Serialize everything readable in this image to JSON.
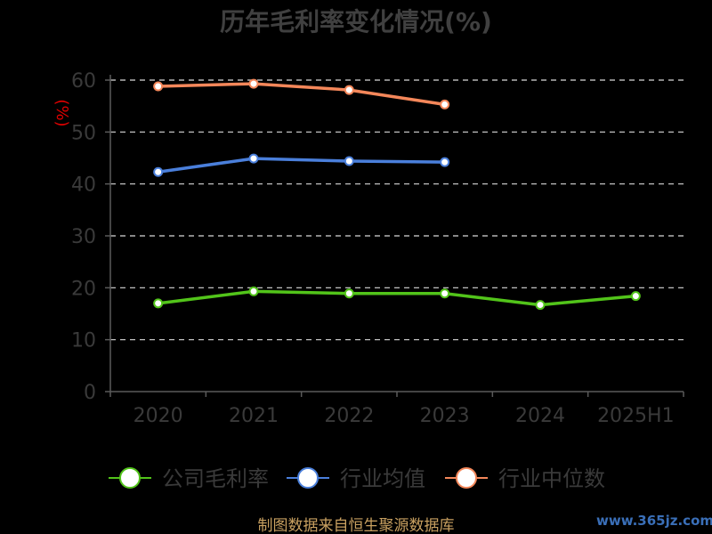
{
  "chart_data": {
    "type": "line",
    "title": "历年毛利率变化情况(%)",
    "ylabel": "(%)",
    "xlabel": "",
    "categories": [
      "2020",
      "2021",
      "2022",
      "2023",
      "2024",
      "2025H1"
    ],
    "ylim": [
      0,
      60
    ],
    "yticks": [
      0,
      10,
      20,
      30,
      40,
      50,
      60
    ],
    "grid": true,
    "legend_position": "bottom",
    "series": [
      {
        "name": "公司毛利率",
        "color": "#52c41a",
        "values": [
          17.0,
          19.3,
          18.9,
          18.9,
          16.7,
          18.4
        ]
      },
      {
        "name": "行业均值",
        "color": "#4a7fdb",
        "values": [
          42.3,
          44.9,
          44.4,
          44.2,
          null,
          null
        ]
      },
      {
        "name": "行业中位数",
        "color": "#f4875a",
        "values": [
          58.8,
          59.3,
          58.1,
          55.3,
          null,
          null
        ]
      }
    ]
  },
  "source": "制图数据来自恒生聚源数据库",
  "watermark": "www.365jz.com",
  "colors": {
    "background": "#000000",
    "axis": "#5a5a5a",
    "grid": "#d9d9d9"
  }
}
